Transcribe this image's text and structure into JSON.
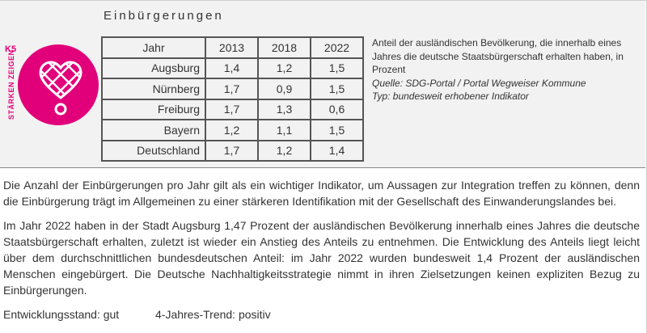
{
  "section_title": "Einbürgerungen",
  "logo": {
    "vertical_text": "STÄRKEN ZEIGEN",
    "badge": "K5",
    "color": "#e2007a",
    "icon": "map-pin-heart-icon"
  },
  "table": {
    "headers": [
      "Jahr",
      "2013",
      "2018",
      "2022"
    ],
    "rows": [
      [
        "Augsburg",
        "1,4",
        "1,2",
        "1,5"
      ],
      [
        "Nürnberg",
        "1,7",
        "0,9",
        "1,5"
      ],
      [
        "Freiburg",
        "1,7",
        "1,3",
        "0,6"
      ],
      [
        "Bayern",
        "1,2",
        "1,1",
        "1,5"
      ],
      [
        "Deutschland",
        "1,7",
        "1,2",
        "1,4"
      ]
    ]
  },
  "description": {
    "text": "Anteil der ausländischen Bevölkerung, die innerhalb eines Jahres die deutsche Staatsbürgerschaft erhalten haben, in Prozent",
    "source": "Quelle: SDG-Portal / Portal Wegweiser Kommune",
    "type": "Typ: bundesweit erhobener Indikator"
  },
  "paragraphs": [
    "Die Anzahl der Einbürgerungen pro Jahr gilt als ein wichtiger Indikator, um Aussagen zur Integration treffen zu können, denn die Einbürgerung trägt im Allgemeinen zu einer stärkeren Identifikation mit der Gesellschaft des Einwanderungslandes bei.",
    "Im Jahr 2022 haben in der Stadt Augsburg 1,47 Prozent der ausländischen Bevölkerung innerhalb eines Jahres die deutsche Staatsbürgerschaft erhalten, zuletzt ist wieder ein Anstieg des Anteils zu entnehmen. Die Entwicklung des Anteils liegt leicht über dem durchschnittlichen bundesdeutschen Anteil: im Jahr 2022 wurden bundesweit 1,4 Prozent der ausländischen Menschen eingebürgert. Die Deutsche Nachhaltigkeitsstrategie nimmt in ihren Zielsetzungen keinen expliziten Bezug zu Einbürgerungen."
  ],
  "status": {
    "entwicklungsstand": "Entwicklungsstand: gut",
    "trend": "4-Jahres-Trend: positiv"
  }
}
